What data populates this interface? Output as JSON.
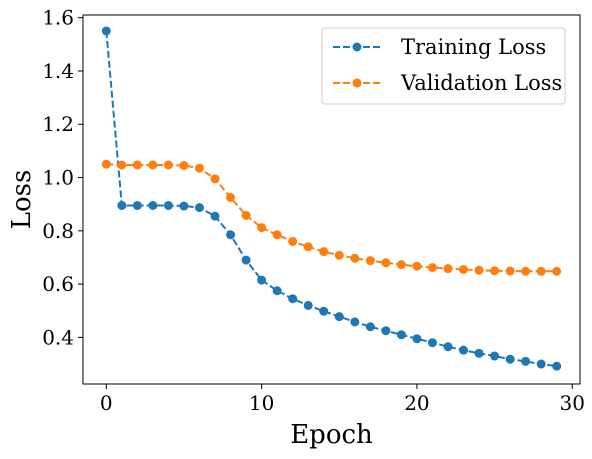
{
  "chart_data": {
    "type": "line",
    "title": "",
    "xlabel": "Epoch",
    "ylabel": "Loss",
    "xlim": [
      -1.5,
      30.5
    ],
    "ylim": [
      0.225,
      1.61
    ],
    "xticks": [
      0,
      10,
      20,
      30
    ],
    "xtick_labels": [
      "0",
      "10",
      "20",
      "30"
    ],
    "yticks": [
      0.4,
      0.6,
      0.8,
      1.0,
      1.2,
      1.4,
      1.6
    ],
    "ytick_labels": [
      "0.4",
      "0.6",
      "0.8",
      "1.0",
      "1.2",
      "1.4",
      "1.6"
    ],
    "grid": false,
    "legend_position": "top-right",
    "x": [
      0,
      1,
      2,
      3,
      4,
      5,
      6,
      7,
      8,
      9,
      10,
      11,
      12,
      13,
      14,
      15,
      16,
      17,
      18,
      19,
      20,
      21,
      22,
      23,
      24,
      25,
      26,
      27,
      28,
      29
    ],
    "series": [
      {
        "name": "Training Loss",
        "color": "#1f77b4",
        "linestyle": "dashed",
        "marker": "circle",
        "values": [
          1.55,
          0.895,
          0.895,
          0.895,
          0.895,
          0.893,
          0.887,
          0.855,
          0.785,
          0.69,
          0.615,
          0.575,
          0.545,
          0.52,
          0.498,
          0.478,
          0.458,
          0.44,
          0.425,
          0.41,
          0.395,
          0.38,
          0.365,
          0.352,
          0.34,
          0.33,
          0.318,
          0.31,
          0.3,
          0.292
        ]
      },
      {
        "name": "Validation Loss",
        "color": "#ff7f0e",
        "linestyle": "dashed",
        "marker": "circle",
        "values": [
          1.05,
          1.047,
          1.047,
          1.047,
          1.047,
          1.045,
          1.035,
          0.995,
          0.925,
          0.858,
          0.812,
          0.785,
          0.76,
          0.74,
          0.722,
          0.708,
          0.697,
          0.688,
          0.68,
          0.673,
          0.667,
          0.662,
          0.658,
          0.655,
          0.652,
          0.65,
          0.649,
          0.648,
          0.648,
          0.648
        ]
      }
    ]
  }
}
